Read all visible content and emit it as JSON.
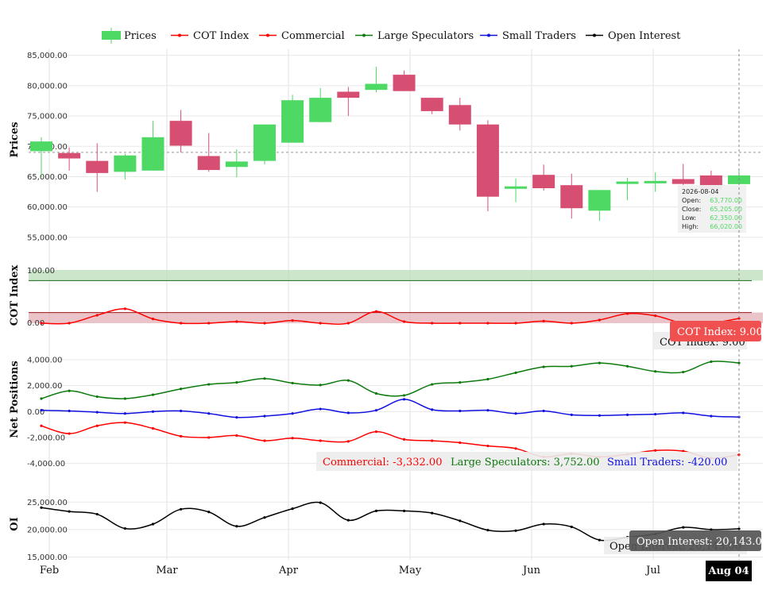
{
  "colors": {
    "up": "#4ed964",
    "down": "#d64f73",
    "cot": "#ff0000",
    "commercial": "#ff0000",
    "large": "#0c7a0c",
    "small": "#1010e0",
    "oi": "#000000",
    "band_high": "#b9ddb9",
    "band_low": "#e3b0b6"
  },
  "chart_data": {
    "type": "candlestick+line",
    "legend": [
      "Prices",
      "COT Index",
      "Commercial",
      "Large Speculators",
      "Small Traders",
      "Open Interest"
    ],
    "legend_placement": "top-center",
    "x_labels": [
      "Feb",
      "Mar",
      "Apr",
      "May",
      "Jun",
      "Jul"
    ],
    "x_active_label": "Aug 04",
    "panels": {
      "prices": {
        "title": "Prices",
        "yticks": [
          "85,000.00",
          "80,000.00",
          "75,000.00",
          "70,000.00",
          "65,000.00",
          "60,000.00",
          "55,000.00"
        ],
        "ylim": [
          52500,
          86000
        ],
        "crosshair_y": 69000,
        "candles": [
          {
            "o": 69200,
            "c": 70800,
            "h": 71500,
            "l": 65000
          },
          {
            "o": 68900,
            "c": 68000,
            "h": 69800,
            "l": 66000
          },
          {
            "o": 67600,
            "c": 65600,
            "h": 70500,
            "l": 62500
          },
          {
            "o": 65800,
            "c": 68500,
            "h": 68800,
            "l": 64500
          },
          {
            "o": 66000,
            "c": 71500,
            "h": 74200,
            "l": 66000
          },
          {
            "o": 74200,
            "c": 70100,
            "h": 76000,
            "l": 69000
          },
          {
            "o": 68400,
            "c": 66100,
            "h": 72200,
            "l": 65800
          },
          {
            "o": 66600,
            "c": 67500,
            "h": 69500,
            "l": 64900
          },
          {
            "o": 67600,
            "c": 73600,
            "h": 73600,
            "l": 67000
          },
          {
            "o": 70600,
            "c": 77600,
            "h": 78500,
            "l": 70600
          },
          {
            "o": 74000,
            "c": 78000,
            "h": 79600,
            "l": 74000
          },
          {
            "o": 79000,
            "c": 78000,
            "h": 79800,
            "l": 75000
          },
          {
            "o": 79300,
            "c": 80300,
            "h": 83100,
            "l": 78900
          },
          {
            "o": 81800,
            "c": 79100,
            "h": 82500,
            "l": 79100
          },
          {
            "o": 78000,
            "c": 75800,
            "h": 78000,
            "l": 75300
          },
          {
            "o": 76800,
            "c": 73600,
            "h": 78000,
            "l": 72600
          },
          {
            "o": 73600,
            "c": 61700,
            "h": 74300,
            "l": 59300
          },
          {
            "o": 63000,
            "c": 63400,
            "h": 64700,
            "l": 60800
          },
          {
            "o": 65300,
            "c": 63100,
            "h": 67000,
            "l": 62700
          },
          {
            "o": 63600,
            "c": 59800,
            "h": 65500,
            "l": 58100
          },
          {
            "o": 59400,
            "c": 62800,
            "h": 62800,
            "l": 57700
          },
          {
            "o": 63800,
            "c": 64200,
            "h": 64800,
            "l": 61100
          },
          {
            "o": 63900,
            "c": 64300,
            "h": 65700,
            "l": 62500
          },
          {
            "o": 64600,
            "c": 63800,
            "h": 67100,
            "l": 61800
          },
          {
            "o": 65200,
            "c": 62900,
            "h": 66000,
            "l": 62900
          },
          {
            "o": 63770,
            "c": 65205,
            "h": 66020,
            "l": 62350
          }
        ],
        "tooltip": {
          "date": "2026-08-04",
          "rows": [
            {
              "label": "Open:",
              "value": "63,770.00"
            },
            {
              "label": "Close:",
              "value": "65,205.00"
            },
            {
              "label": "Low:",
              "value": "62,350.00"
            },
            {
              "label": "High:",
              "value": "66,020.00"
            }
          ]
        }
      },
      "cot": {
        "title": "COT Index",
        "yticks": [
          "100.00",
          "0.00"
        ],
        "ylim": [
          0,
          100
        ],
        "band_high": [
          80,
          100
        ],
        "band_low": [
          0,
          20
        ],
        "values": [
          0,
          0,
          15,
          27,
          8,
          0,
          0,
          3,
          0,
          5,
          0,
          0,
          22,
          3,
          0,
          0,
          0,
          0,
          4,
          0,
          6,
          18,
          14,
          0,
          0,
          9
        ],
        "readout_primary": "COT Index: 9.00",
        "readout_secondary": "COT Index: 9.00"
      },
      "net": {
        "title": "Net Positions",
        "yticks": [
          "4,000.00",
          "2,000.00",
          "0.00",
          "-2,000.00",
          "-4,000.00"
        ],
        "ylim": [
          -4700,
          4800
        ],
        "commercial": [
          -1100,
          -1700,
          -1100,
          -850,
          -1300,
          -1900,
          -2000,
          -1850,
          -2250,
          -2050,
          -2250,
          -2300,
          -1550,
          -2150,
          -2250,
          -2400,
          -2650,
          -2850,
          -3500,
          -3250,
          -3500,
          -3300,
          -3000,
          -3050,
          -3600,
          -3332
        ],
        "large": [
          1000,
          1600,
          1150,
          1000,
          1300,
          1750,
          2100,
          2250,
          2550,
          2200,
          2050,
          2400,
          1400,
          1250,
          2100,
          2250,
          2500,
          3000,
          3450,
          3500,
          3750,
          3500,
          3100,
          3050,
          3850,
          3752
        ],
        "small": [
          100,
          50,
          -50,
          -150,
          0,
          50,
          -150,
          -450,
          -350,
          -150,
          200,
          -100,
          100,
          950,
          150,
          50,
          100,
          -150,
          50,
          -250,
          -300,
          -250,
          -200,
          -100,
          -350,
          -420
        ],
        "readouts": [
          {
            "text": "Commercial: -3,332.00",
            "series": "commercial"
          },
          {
            "text": "Large Speculators: 3,752.00",
            "series": "large"
          },
          {
            "text": "Small Traders: -420.00",
            "series": "small"
          }
        ]
      },
      "oi": {
        "title": "OI",
        "yticks": [
          "25,000.00",
          "20,000.00",
          "15,000.00"
        ],
        "ylim": [
          14500,
          27500
        ],
        "values": [
          24000,
          23300,
          22800,
          20200,
          21000,
          23700,
          23200,
          20600,
          22200,
          23800,
          24900,
          21700,
          23400,
          23400,
          23000,
          21600,
          19900,
          19800,
          21000,
          20500,
          18100,
          18600,
          19200,
          20400,
          20000,
          20143
        ],
        "readout_primary": "Open Interest: 20,143.00",
        "readout_secondary": "Open Interest: 20,143.00"
      }
    }
  }
}
